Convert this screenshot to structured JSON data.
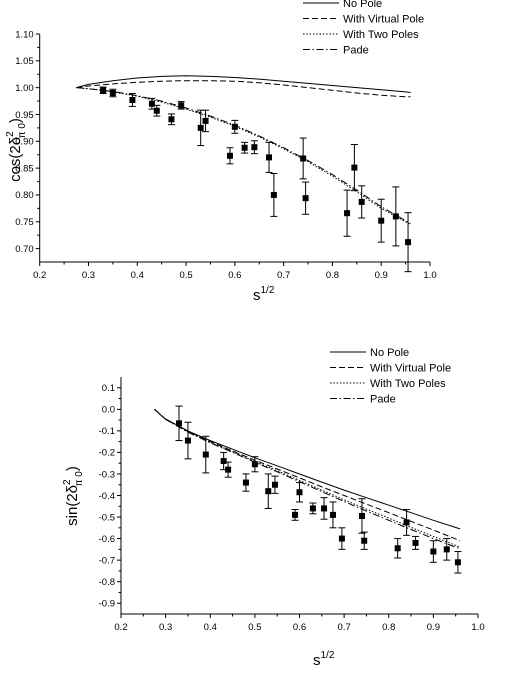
{
  "chart_data": [
    {
      "type": "line",
      "xlabel": "s",
      "xlabel_sup": "1/2",
      "ylabel": "cos(2δ",
      "ylabel_sup": "2",
      "ylabel_sub": "π 0",
      "ylabel_end": ")",
      "xlim": [
        0.2,
        1.0
      ],
      "ylim": [
        0.675,
        1.1
      ],
      "xticks": [
        "0.2",
        "0.3",
        "0.4",
        "0.5",
        "0.6",
        "0.7",
        "0.8",
        "0.9",
        "1.0"
      ],
      "yticks": [
        "0.70",
        "0.75",
        "0.80",
        "0.85",
        "0.90",
        "0.95",
        "1.00",
        "1.05",
        "1.10"
      ],
      "legend_position": "top-right",
      "series": [
        {
          "name": "No Pole",
          "style": "solid",
          "x": [
            0.275,
            0.3,
            0.35,
            0.4,
            0.45,
            0.5,
            0.55,
            0.6,
            0.65,
            0.7,
            0.75,
            0.8,
            0.85,
            0.9,
            0.95,
            0.96
          ],
          "y": [
            1.0,
            1.006,
            1.013,
            1.018,
            1.021,
            1.022,
            1.021,
            1.019,
            1.016,
            1.012,
            1.008,
            1.004,
            1.0,
            0.996,
            0.992,
            0.991
          ]
        },
        {
          "name": "With Virtual Pole",
          "style": "dashed",
          "x": [
            0.275,
            0.3,
            0.35,
            0.4,
            0.45,
            0.5,
            0.55,
            0.6,
            0.65,
            0.7,
            0.75,
            0.8,
            0.85,
            0.9,
            0.95,
            0.96
          ],
          "y": [
            1.0,
            1.003,
            1.007,
            1.01,
            1.012,
            1.013,
            1.013,
            1.012,
            1.009,
            1.005,
            1.0,
            0.995,
            0.99,
            0.986,
            0.983,
            0.983
          ]
        },
        {
          "name": "With Two Poles",
          "style": "dotted",
          "x": [
            0.275,
            0.3,
            0.35,
            0.4,
            0.45,
            0.5,
            0.55,
            0.6,
            0.65,
            0.7,
            0.75,
            0.8,
            0.85,
            0.9,
            0.95,
            0.96
          ],
          "y": [
            1.0,
            0.998,
            0.992,
            0.984,
            0.973,
            0.96,
            0.945,
            0.928,
            0.908,
            0.886,
            0.862,
            0.835,
            0.806,
            0.775,
            0.75,
            0.745
          ]
        },
        {
          "name": "Pade",
          "style": "dashdot",
          "x": [
            0.275,
            0.3,
            0.35,
            0.4,
            0.45,
            0.5,
            0.55,
            0.6,
            0.65,
            0.7,
            0.75,
            0.8,
            0.85,
            0.9,
            0.95,
            0.96
          ],
          "y": [
            1.0,
            0.998,
            0.993,
            0.985,
            0.975,
            0.962,
            0.947,
            0.93,
            0.91,
            0.888,
            0.864,
            0.838,
            0.809,
            0.778,
            0.752,
            0.747
          ]
        }
      ],
      "points": {
        "x": [
          0.33,
          0.35,
          0.39,
          0.43,
          0.44,
          0.47,
          0.49,
          0.53,
          0.54,
          0.59,
          0.6,
          0.62,
          0.64,
          0.67,
          0.68,
          0.74,
          0.745,
          0.83,
          0.845,
          0.86,
          0.9,
          0.93,
          0.955
        ],
        "y": [
          0.995,
          0.99,
          0.977,
          0.97,
          0.957,
          0.941,
          0.967,
          0.925,
          0.938,
          0.873,
          0.927,
          0.888,
          0.889,
          0.87,
          0.8,
          0.868,
          0.794,
          0.766,
          0.851,
          0.787,
          0.752,
          0.76,
          0.712
        ],
        "err": [
          0.006,
          0.007,
          0.012,
          0.01,
          0.01,
          0.01,
          0.007,
          0.033,
          0.02,
          0.015,
          0.012,
          0.01,
          0.012,
          0.028,
          0.04,
          0.038,
          0.03,
          0.043,
          0.043,
          0.03,
          0.04,
          0.055,
          0.055
        ]
      }
    },
    {
      "type": "line",
      "xlabel": "s",
      "xlabel_sup": "1/2",
      "ylabel": "sin(2δ",
      "ylabel_sup": "2",
      "ylabel_sub": "π 0",
      "ylabel_end": ")",
      "xlim": [
        0.2,
        1.0
      ],
      "ylim": [
        -0.95,
        0.15
      ],
      "xticks": [
        "0.2",
        "0.3",
        "0.4",
        "0.5",
        "0.6",
        "0.7",
        "0.8",
        "0.9",
        "1.0"
      ],
      "yticks": [
        "0.1",
        "0.0",
        "-0.1",
        "-0.2",
        "-0.3",
        "-0.4",
        "-0.5",
        "-0.6",
        "-0.7",
        "-0.8",
        "-0.9"
      ],
      "legend_position": "top-right",
      "series": [
        {
          "name": "No Pole",
          "style": "solid",
          "x": [
            0.275,
            0.29,
            0.3,
            0.35,
            0.4,
            0.45,
            0.5,
            0.55,
            0.6,
            0.65,
            0.7,
            0.75,
            0.8,
            0.85,
            0.9,
            0.96
          ],
          "y": [
            0.0,
            -0.028,
            -0.045,
            -0.1,
            -0.145,
            -0.185,
            -0.225,
            -0.262,
            -0.3,
            -0.338,
            -0.375,
            -0.41,
            -0.445,
            -0.48,
            -0.515,
            -0.555
          ]
        },
        {
          "name": "With Virtual Pole",
          "style": "dashed",
          "x": [
            0.275,
            0.29,
            0.3,
            0.35,
            0.4,
            0.45,
            0.5,
            0.55,
            0.6,
            0.65,
            0.7,
            0.75,
            0.8,
            0.85,
            0.9,
            0.96
          ],
          "y": [
            0.0,
            -0.028,
            -0.046,
            -0.103,
            -0.15,
            -0.193,
            -0.236,
            -0.277,
            -0.318,
            -0.36,
            -0.4,
            -0.44,
            -0.48,
            -0.52,
            -0.56,
            -0.61
          ]
        },
        {
          "name": "With Two Poles",
          "style": "dotted",
          "x": [
            0.275,
            0.29,
            0.3,
            0.35,
            0.4,
            0.45,
            0.5,
            0.55,
            0.6,
            0.65,
            0.7,
            0.75,
            0.8,
            0.85,
            0.9,
            0.96
          ],
          "y": [
            0.0,
            -0.028,
            -0.046,
            -0.104,
            -0.153,
            -0.197,
            -0.242,
            -0.285,
            -0.33,
            -0.375,
            -0.42,
            -0.463,
            -0.505,
            -0.548,
            -0.59,
            -0.64
          ]
        },
        {
          "name": "Pade",
          "style": "dashdot",
          "x": [
            0.275,
            0.29,
            0.3,
            0.35,
            0.4,
            0.45,
            0.5,
            0.55,
            0.6,
            0.65,
            0.7,
            0.75,
            0.8,
            0.85,
            0.9,
            0.96
          ],
          "y": [
            0.0,
            -0.028,
            -0.047,
            -0.106,
            -0.156,
            -0.2,
            -0.246,
            -0.29,
            -0.336,
            -0.382,
            -0.428,
            -0.472,
            -0.515,
            -0.558,
            -0.6,
            -0.648
          ]
        }
      ],
      "points": {
        "x": [
          0.33,
          0.35,
          0.39,
          0.43,
          0.44,
          0.48,
          0.5,
          0.53,
          0.545,
          0.59,
          0.6,
          0.63,
          0.655,
          0.675,
          0.695,
          0.74,
          0.745,
          0.82,
          0.84,
          0.86,
          0.9,
          0.93,
          0.955
        ],
        "y": [
          -0.065,
          -0.145,
          -0.21,
          -0.24,
          -0.28,
          -0.34,
          -0.255,
          -0.38,
          -0.35,
          -0.49,
          -0.385,
          -0.46,
          -0.46,
          -0.49,
          -0.6,
          -0.495,
          -0.61,
          -0.645,
          -0.525,
          -0.62,
          -0.66,
          -0.65,
          -0.71
        ],
        "err": [
          0.08,
          0.085,
          0.085,
          0.04,
          0.035,
          0.04,
          0.035,
          0.08,
          0.04,
          0.025,
          0.045,
          0.025,
          0.05,
          0.06,
          0.05,
          0.08,
          0.04,
          0.045,
          0.06,
          0.03,
          0.05,
          0.05,
          0.05
        ]
      }
    }
  ]
}
